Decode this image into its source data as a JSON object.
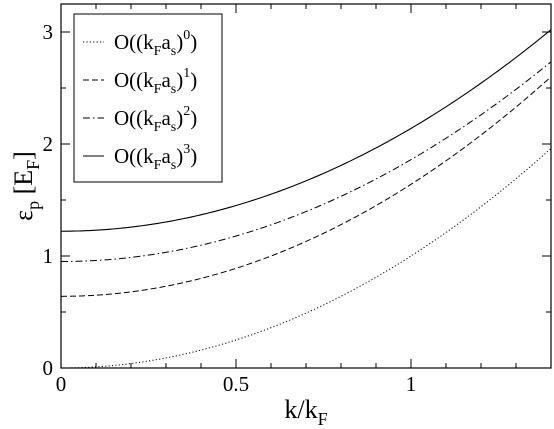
{
  "chart_data": {
    "type": "line",
    "title": "",
    "xlabel": {
      "main": "k/k",
      "sub": "F"
    },
    "ylabel": {
      "sym": "ε",
      "sub": "p",
      "bracket_open": " [E",
      "bracket_sub": "F",
      "bracket_close": "]"
    },
    "xlim": [
      0,
      1.4
    ],
    "ylim": [
      0,
      3.25
    ],
    "x_ticks": [
      {
        "value": 0,
        "label": "0"
      },
      {
        "value": 0.5,
        "label": "0.5"
      },
      {
        "value": 1,
        "label": "1"
      }
    ],
    "y_ticks": [
      {
        "value": 0,
        "label": "0"
      },
      {
        "value": 1,
        "label": "1"
      },
      {
        "value": 2,
        "label": "2"
      },
      {
        "value": 3,
        "label": "3"
      }
    ],
    "grid": false,
    "legend_position": "top-left",
    "series": [
      {
        "name": {
          "pre": "O((k",
          "sub1": "F",
          "mid": "a",
          "sub2": "s",
          "post": ")",
          "sup": "0",
          "end": ")"
        },
        "style": "dotted",
        "x": [
          0,
          0.2,
          0.4,
          0.6,
          0.8,
          1.0,
          1.2,
          1.4
        ],
        "y": [
          0.0,
          0.04,
          0.16,
          0.36,
          0.64,
          1.0,
          1.44,
          1.96
        ]
      },
      {
        "name": {
          "pre": "O((k",
          "sub1": "F",
          "mid": "a",
          "sub2": "s",
          "post": ")",
          "sup": "1",
          "end": ")"
        },
        "style": "dashed",
        "x": [
          0,
          0.2,
          0.4,
          0.6,
          0.8,
          1.0,
          1.2,
          1.4
        ],
        "y": [
          0.64,
          0.68,
          0.8,
          1.0,
          1.28,
          1.64,
          2.08,
          2.6
        ]
      },
      {
        "name": {
          "pre": "O((k",
          "sub1": "F",
          "mid": "a",
          "sub2": "s",
          "post": ")",
          "sup": "2",
          "end": ")"
        },
        "style": "dashdot",
        "x": [
          0,
          0.2,
          0.4,
          0.6,
          0.8,
          1.0,
          1.2,
          1.4
        ],
        "y": [
          0.94,
          0.98,
          1.09,
          1.28,
          1.54,
          1.88,
          2.29,
          2.7
        ]
      },
      {
        "name": {
          "pre": "O((k",
          "sub1": "F",
          "mid": "a",
          "sub2": "s",
          "post": ")",
          "sup": "3",
          "end": ")"
        },
        "style": "solid",
        "x": [
          0,
          0.2,
          0.4,
          0.6,
          0.8,
          1.0,
          1.2,
          1.4
        ],
        "y": [
          1.23,
          1.27,
          1.37,
          1.55,
          1.8,
          2.12,
          2.52,
          3.05
        ]
      }
    ]
  }
}
